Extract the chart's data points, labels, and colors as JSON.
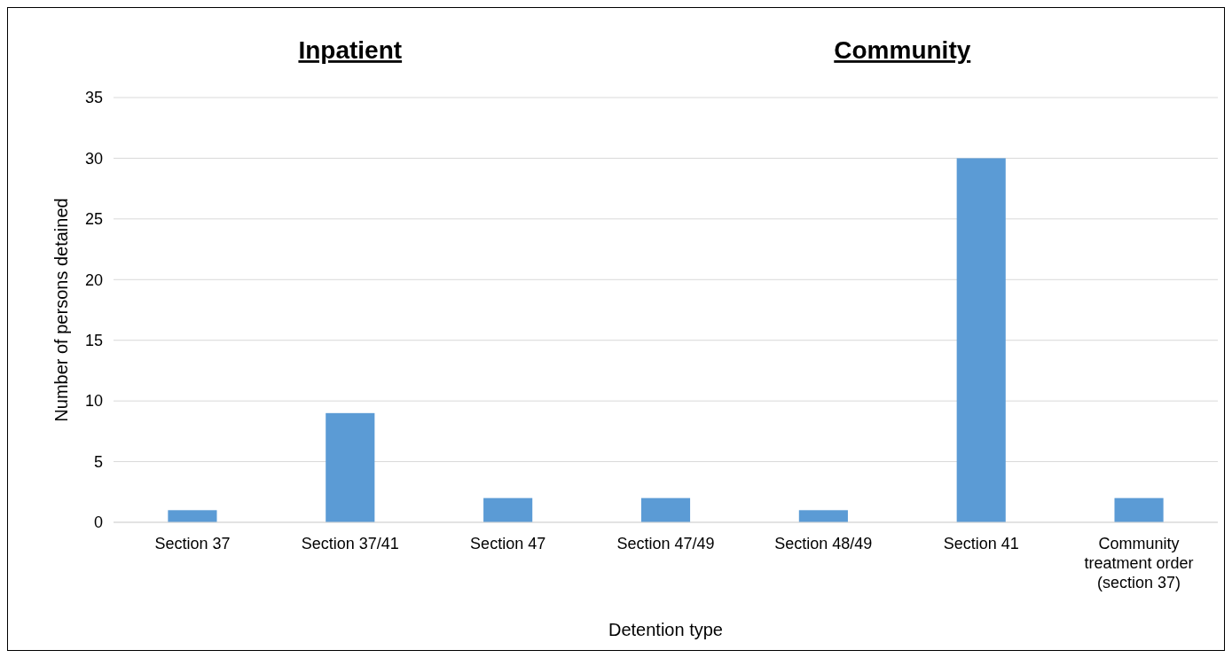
{
  "chart_data": {
    "type": "bar",
    "xlabel": "Detention type",
    "ylabel": "Number of persons detained",
    "annotations": [
      "Inpatient ",
      "Community"
    ],
    "categories": [
      "Section 37",
      "Section 37/41",
      "Section 47",
      "Section 47/49",
      "Section 48/49",
      "Section 41",
      "Community treatment order (section 37)"
    ],
    "values": [
      1,
      9,
      2,
      2,
      1,
      30,
      2
    ],
    "color": "#5b9bd5",
    "ylim": [
      0,
      35
    ],
    "yticks": [
      0,
      5,
      10,
      15,
      20,
      25,
      30,
      35
    ],
    "grid": "y"
  }
}
